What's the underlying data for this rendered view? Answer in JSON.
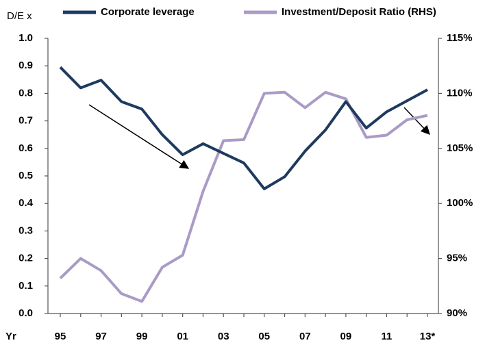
{
  "chart_data": {
    "type": "line",
    "y_label": "D/E x",
    "x_label": "Yr",
    "categories": [
      "95",
      null,
      "97",
      null,
      "99",
      null,
      "01",
      null,
      "03",
      null,
      "05",
      null,
      "07",
      null,
      "09",
      null,
      "11",
      null,
      "13*"
    ],
    "series": [
      {
        "name": "Corporate leverage",
        "color": "#1f3a5f",
        "values": [
          0.895,
          0.82,
          0.848,
          0.77,
          0.743,
          0.65,
          0.577,
          0.617,
          0.582,
          0.547,
          0.453,
          0.497,
          0.59,
          0.667,
          0.77,
          0.674,
          0.733,
          0.773,
          0.813
        ]
      },
      {
        "name": "Investment/Deposit Ratio (RHS)",
        "color": "#a99bc6",
        "axis": "y2",
        "values": [
          93.2,
          95.0,
          93.9,
          91.8,
          91.1,
          94.2,
          95.3,
          101.1,
          105.7,
          105.8,
          110.0,
          110.1,
          108.7,
          110.1,
          109.5,
          106.0,
          106.2,
          107.6,
          108.0
        ]
      }
    ],
    "ylim": [
      0,
      1
    ],
    "yticks": [
      {
        "value": 0,
        "label": "0.0"
      },
      0.1,
      0.2,
      0.3,
      0.4,
      0.5,
      0.6,
      0.7,
      0.8,
      0.9,
      {
        "value": 1,
        "label": "1.0"
      }
    ],
    "y2lim": [
      90,
      115
    ],
    "y2ticks": [
      {
        "value": 90,
        "label": "90%"
      },
      {
        "value": 95,
        "label": "95%"
      },
      {
        "value": 100,
        "label": "100%"
      },
      {
        "value": 105,
        "label": "105%"
      },
      {
        "value": 110,
        "label": "110%"
      },
      {
        "value": 115,
        "label": "115%"
      }
    ],
    "grid": false
  }
}
